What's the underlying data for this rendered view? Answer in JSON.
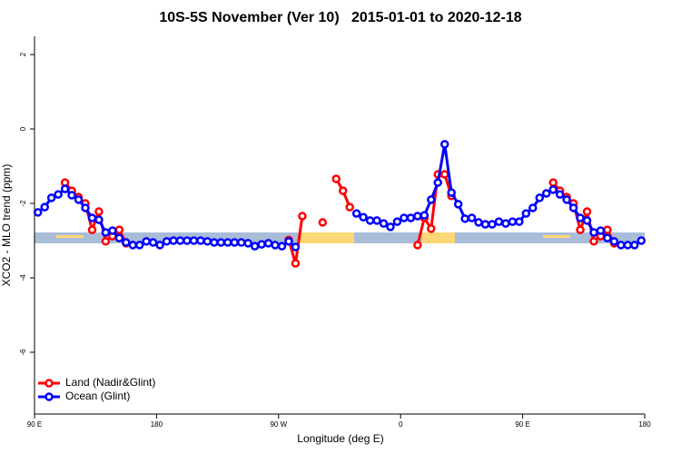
{
  "chart_data": {
    "type": "line",
    "title": "10S-5S November (Ver 10)   2015-01-01 to 2020-12-18",
    "x_label": "Longitude (deg E)",
    "y_label": "XCO2 - MLO trend (ppm)",
    "xlim": [
      90,
      540
    ],
    "ylim": [
      -7.66,
      2.49
    ],
    "xticks": [
      {
        "value": 90,
        "label": "90 E"
      },
      {
        "value": 180,
        "label": "180"
      },
      {
        "value": 270,
        "label": "90 W"
      },
      {
        "value": 360,
        "label": "0"
      },
      {
        "value": 450,
        "label": "90 E"
      },
      {
        "value": 540,
        "label": "180"
      }
    ],
    "yticks": [
      -6,
      -4,
      -2,
      0,
      2
    ],
    "legend": "bottom-left",
    "x": [
      92.5,
      97.5,
      102.5,
      107.5,
      112.5,
      117.5,
      122.5,
      127.5,
      132.5,
      137.5,
      142.5,
      147.5,
      152.5,
      157.5,
      162.5,
      167.5,
      172.5,
      177.5,
      182.5,
      187.5,
      192.5,
      197.5,
      202.5,
      207.5,
      212.5,
      217.5,
      222.5,
      227.5,
      232.5,
      237.5,
      242.5,
      247.5,
      252.5,
      257.5,
      262.5,
      267.5,
      272.5,
      277.5,
      282.5,
      287.5,
      292.5,
      297.5,
      302.5,
      307.5,
      312.5,
      317.5,
      322.5,
      327.5,
      332.5,
      337.5,
      342.5,
      347.5,
      352.5,
      357.5,
      362.5,
      367.5,
      372.5,
      377.5,
      382.5,
      387.5,
      392.5,
      397.5,
      402.5,
      407.5,
      412.5,
      417.5,
      422.5,
      427.5,
      432.5,
      437.5,
      442.5,
      447.5,
      452.5,
      457.5,
      462.5,
      467.5,
      472.5,
      477.5,
      482.5,
      487.5,
      492.5,
      497.5,
      502.5,
      507.5,
      512.5,
      517.5,
      522.5,
      527.5,
      532.5,
      537.5
    ],
    "series": [
      {
        "name": "Land (Nadir&Glint)",
        "color": "#ff0000",
        "values": [
          null,
          null,
          null,
          null,
          -1.44,
          -1.66,
          -1.83,
          -2,
          -2.71,
          -2.22,
          -3.02,
          -2.88,
          -2.71,
          -3.07,
          null,
          null,
          null,
          null,
          null,
          null,
          null,
          null,
          null,
          null,
          null,
          null,
          null,
          null,
          null,
          null,
          null,
          null,
          null,
          null,
          null,
          null,
          null,
          -2.98,
          -3.61,
          -2.34,
          null,
          null,
          -2.51,
          null,
          -1.34,
          -1.66,
          -2.1,
          null,
          null,
          null,
          null,
          null,
          null,
          null,
          null,
          null,
          -3.12,
          -2.39,
          -2.68,
          -1.22,
          -1.22,
          -1.8,
          null,
          null,
          null,
          null,
          null,
          null,
          null,
          null,
          null,
          null,
          null,
          null,
          null,
          null,
          -1.44,
          -1.66,
          -1.83,
          -2,
          -2.71,
          -2.22,
          -3.02,
          -2.88,
          -2.71,
          -3.07,
          null,
          null,
          null,
          null
        ]
      },
      {
        "name": "Ocean (Glint)",
        "color": "#0000ff",
        "values": [
          -2.24,
          -2.1,
          -1.85,
          -1.76,
          -1.61,
          -1.78,
          -1.9,
          -2.12,
          -2.39,
          -2.44,
          -2.78,
          -2.73,
          -2.93,
          -3.05,
          -3.12,
          -3.12,
          -3.02,
          -3.05,
          -3.12,
          -3.02,
          -3,
          -3,
          -3,
          -3,
          -3,
          -3.02,
          -3.05,
          -3.05,
          -3.05,
          -3.05,
          -3.05,
          -3.07,
          -3.15,
          -3.1,
          -3.07,
          -3.12,
          -3.15,
          -3.02,
          -3.17,
          null,
          null,
          null,
          null,
          null,
          null,
          null,
          null,
          -2.27,
          -2.37,
          -2.46,
          -2.46,
          -2.54,
          -2.63,
          -2.49,
          -2.39,
          -2.39,
          -2.34,
          -2.32,
          -1.9,
          -1.44,
          -0.41,
          -1.71,
          -2.02,
          -2.41,
          -2.39,
          -2.51,
          -2.56,
          -2.56,
          -2.49,
          -2.54,
          -2.49,
          -2.49,
          -2.27,
          -2.12,
          -1.85,
          -1.73,
          -1.63,
          -1.76,
          -1.9,
          -2.12,
          -2.39,
          -2.46,
          -2.78,
          -2.73,
          -2.93,
          -3.02,
          -3.12,
          -3.12,
          -3.12,
          -3
        ]
      }
    ]
  }
}
